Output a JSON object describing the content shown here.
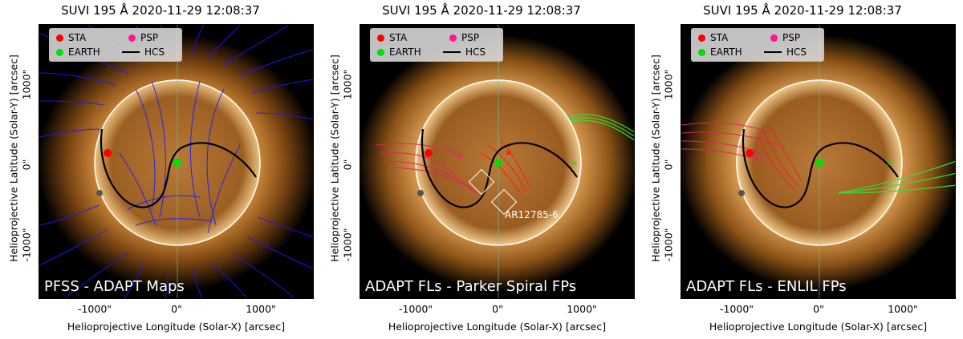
{
  "panels": [
    {
      "title": "SUVI 195 Å 2020-11-29 12:08:37",
      "label": "PFSS - ADAPT Maps"
    },
    {
      "title": "SUVI 195 Å 2020-11-29 12:08:37",
      "label": "ADAPT FLs - Parker Spiral FPs",
      "annotation": "AR12785-6"
    },
    {
      "title": "SUVI 195 Å 2020-11-29 12:08:37",
      "label": "ADAPT FLs - ENLIL FPs"
    }
  ],
  "axes": {
    "ylabel": "Helioprojective Latitude (Solar-Y) [arcsec]",
    "xlabel": "Helioprojective Longitude (Solar-X) [arcsec]",
    "xticks": [
      "-1000\"",
      "0\"",
      "1000\""
    ],
    "yticks": [
      "1000\"",
      "0\"",
      "-1000\""
    ]
  },
  "legend": {
    "sta": "STA",
    "psp": "PSP",
    "earth": "EARTH",
    "hcs": "HCS"
  },
  "colors": {
    "sta": "#ff0000",
    "psp": "#ff1493",
    "earth": "#00e000",
    "hcs": "#000000",
    "pfss_lines": "#1a1aff",
    "psp_lines": "#e8205a",
    "earth_lines": "#33dd33"
  }
}
